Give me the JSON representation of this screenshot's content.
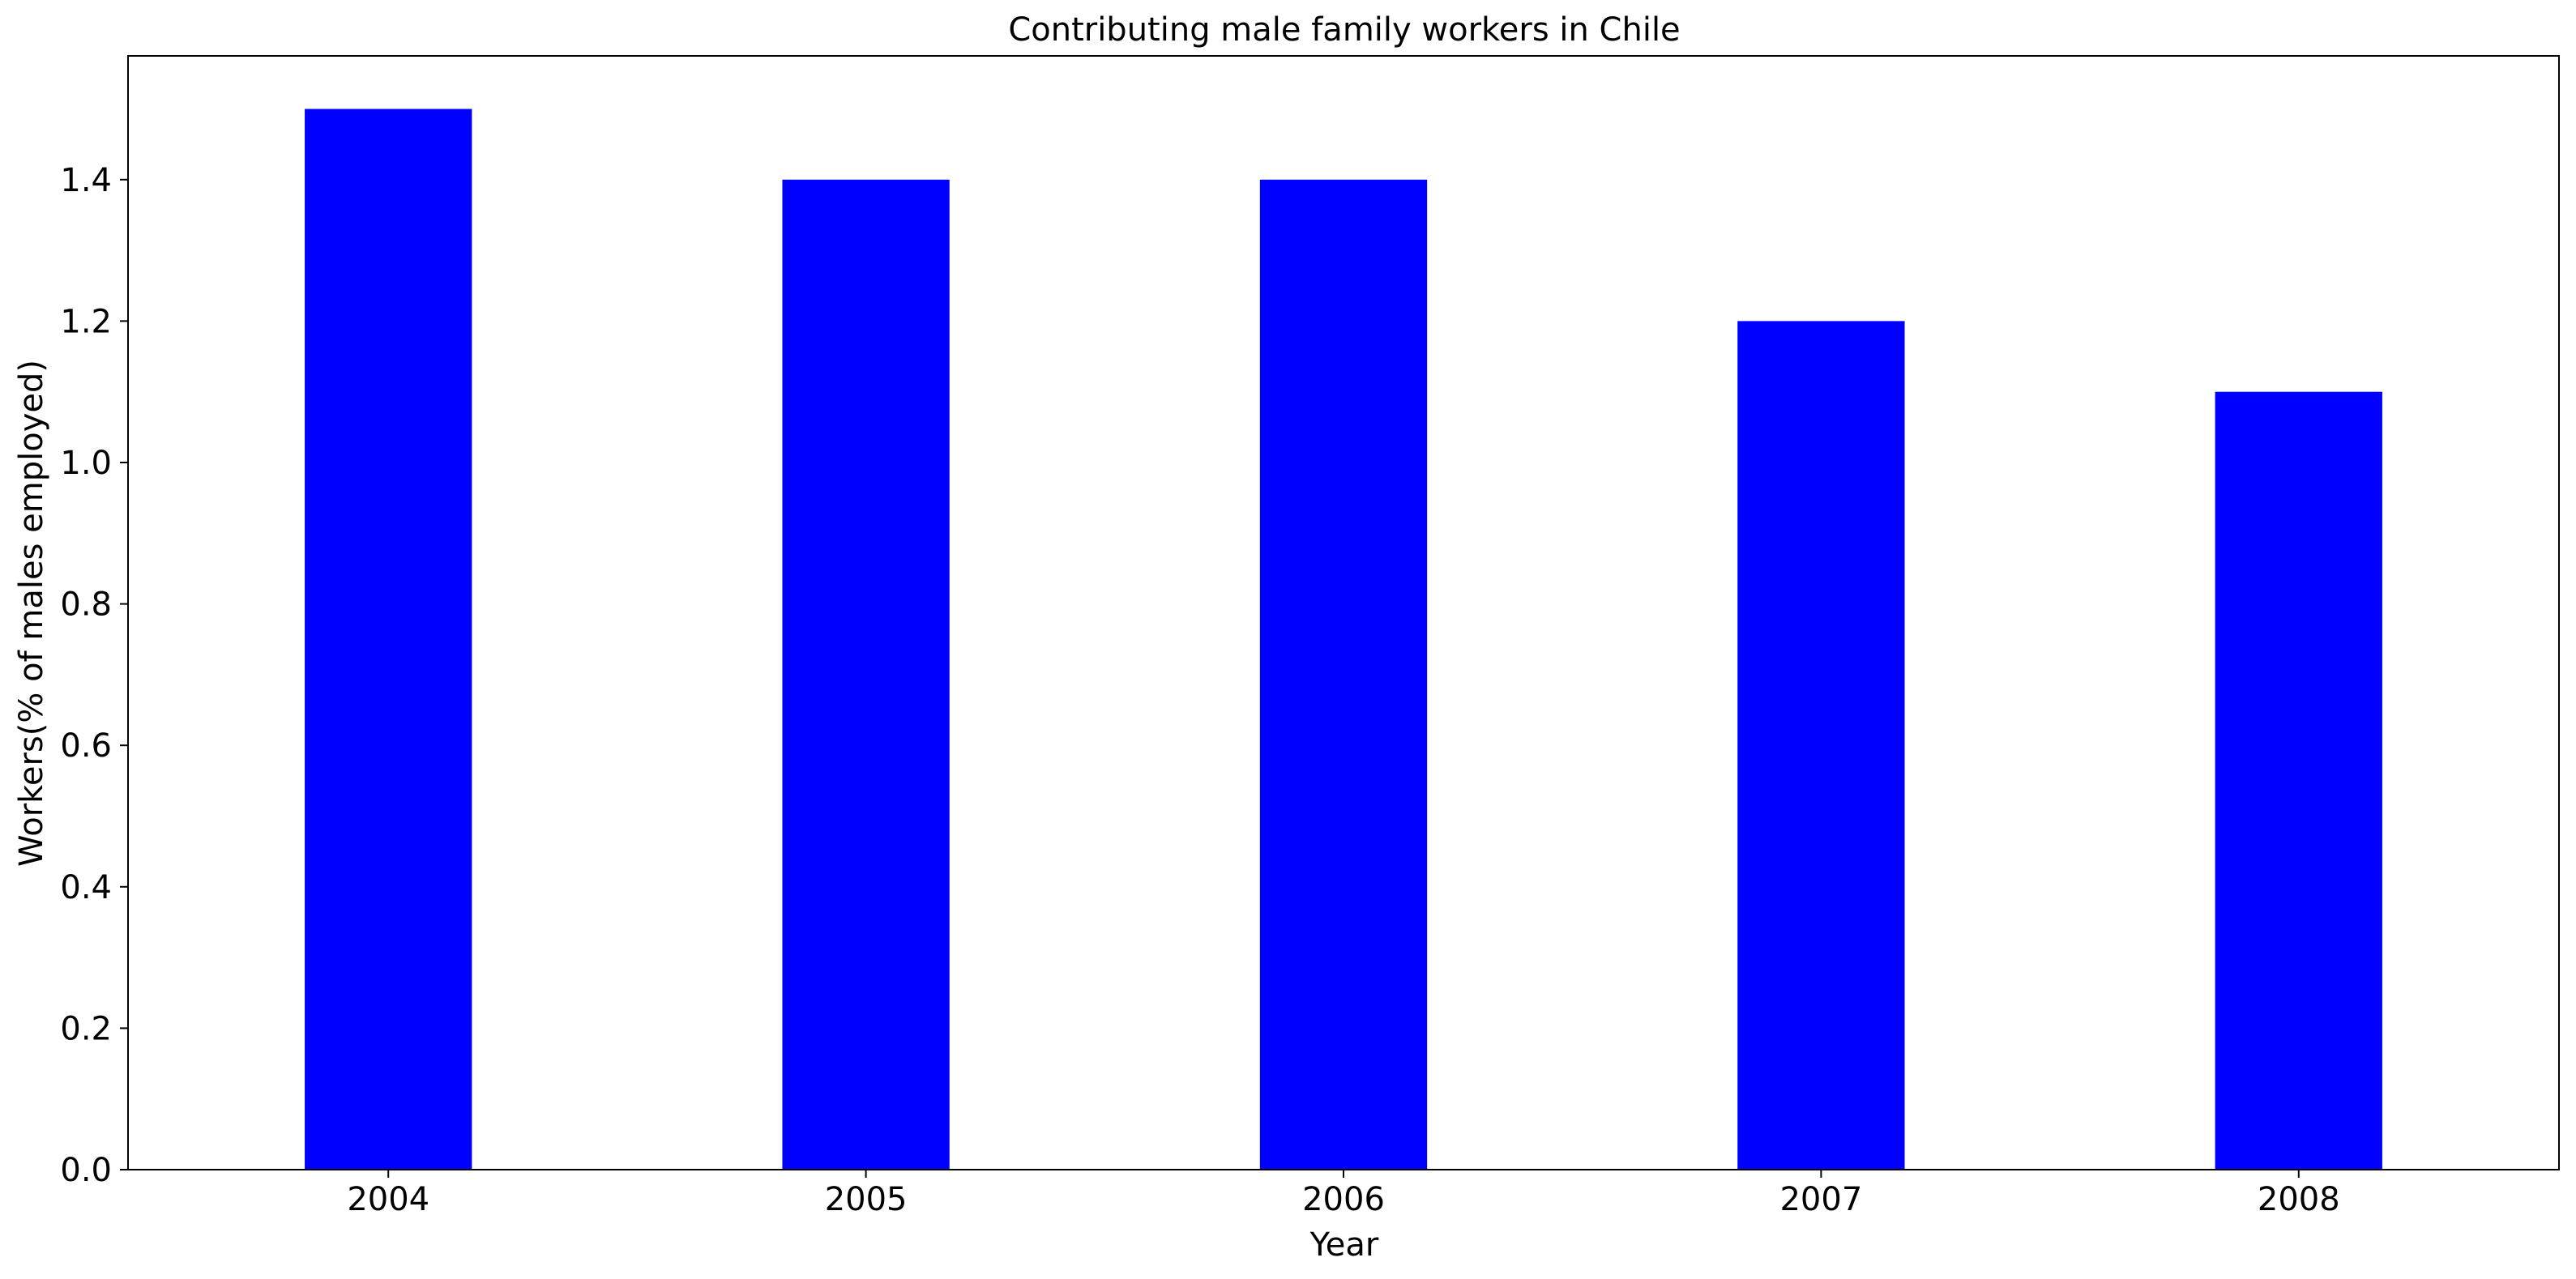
{
  "chart_data": {
    "type": "bar",
    "title": "Contributing male family workers in Chile",
    "xlabel": "Year",
    "ylabel": "Workers(% of males employed)",
    "categories": [
      "2004",
      "2005",
      "2006",
      "2007",
      "2008"
    ],
    "values": [
      1.5,
      1.4,
      1.4,
      1.2,
      1.1
    ],
    "ylim": [
      0,
      1.575
    ],
    "yticks": [
      "0.0",
      "0.2",
      "0.4",
      "0.6",
      "0.8",
      "1.0",
      "1.2",
      "1.4"
    ],
    "grid": false,
    "bar_color": "#0000ff"
  }
}
